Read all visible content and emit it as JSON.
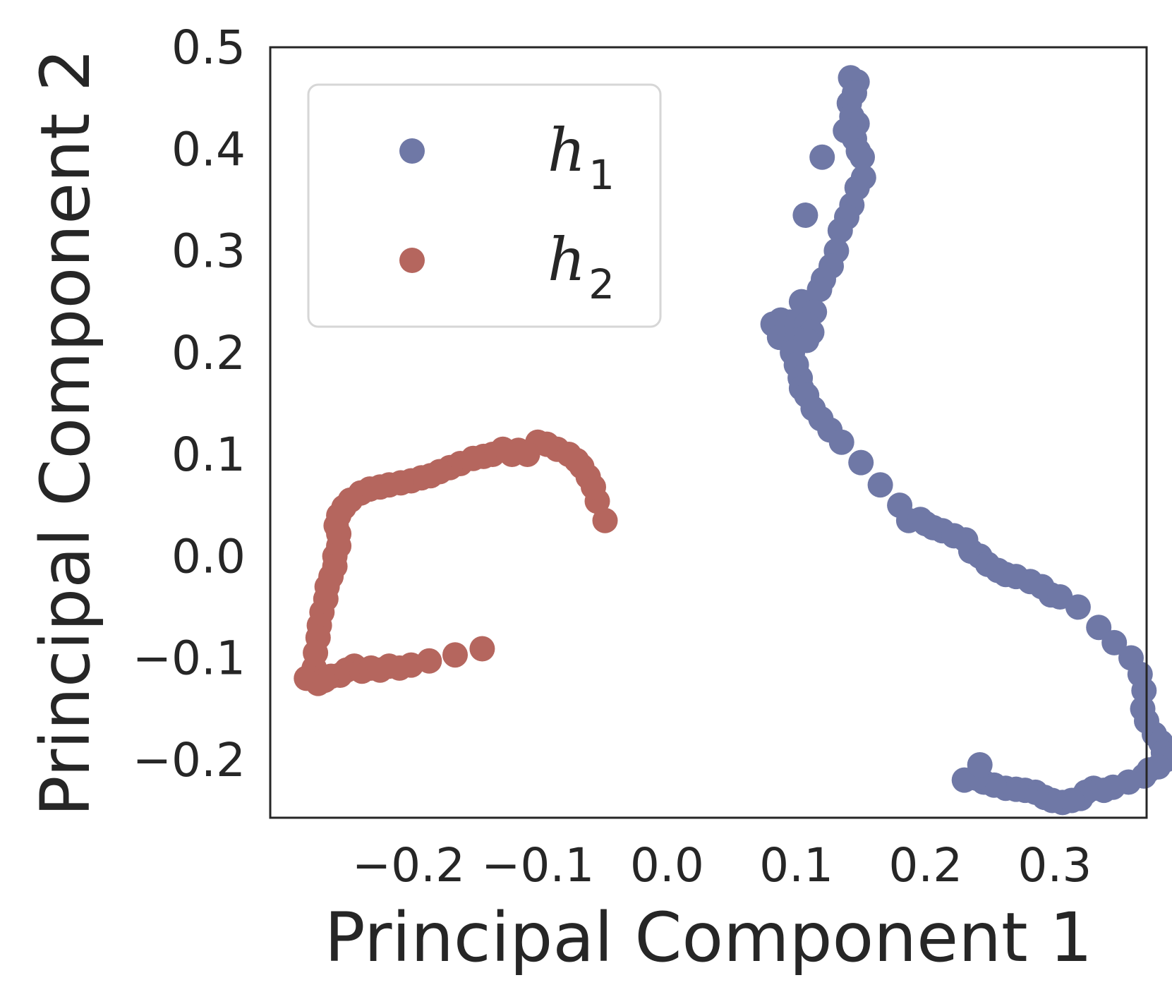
{
  "chart_data": {
    "type": "scatter",
    "xlabel": "Principal Component 1",
    "ylabel": "Principal Component 2",
    "xlim": [
      -0.307,
      0.371
    ],
    "ylim": [
      -0.257,
      0.5
    ],
    "x_ticks": [
      -0.2,
      -0.1,
      0.0,
      0.1,
      0.2,
      0.3
    ],
    "x_tick_labels": [
      "−0.2",
      "−0.1",
      "0.0",
      "0.1",
      "0.2",
      "0.3"
    ],
    "y_ticks": [
      -0.2,
      -0.1,
      0.0,
      0.1,
      0.2,
      0.3,
      0.4,
      0.5
    ],
    "y_tick_labels": [
      "−0.2",
      "−0.1",
      "0.0",
      "0.1",
      "0.2",
      "0.3",
      "0.4",
      "0.5"
    ],
    "grid": false,
    "legend_position": "top-left",
    "series": [
      {
        "name": "h",
        "subscript": "1",
        "color": "#6f78a6",
        "points": [
          [
            0.142,
            0.47
          ],
          [
            0.147,
            0.466
          ],
          [
            0.145,
            0.455
          ],
          [
            0.141,
            0.445
          ],
          [
            0.143,
            0.432
          ],
          [
            0.147,
            0.425
          ],
          [
            0.138,
            0.418
          ],
          [
            0.145,
            0.41
          ],
          [
            0.148,
            0.398
          ],
          [
            0.151,
            0.392
          ],
          [
            0.12,
            0.392
          ],
          [
            0.152,
            0.372
          ],
          [
            0.147,
            0.362
          ],
          [
            0.143,
            0.345
          ],
          [
            0.107,
            0.335
          ],
          [
            0.139,
            0.333
          ],
          [
            0.134,
            0.32
          ],
          [
            0.131,
            0.3
          ],
          [
            0.127,
            0.285
          ],
          [
            0.121,
            0.272
          ],
          [
            0.104,
            0.25
          ],
          [
            0.118,
            0.262
          ],
          [
            0.114,
            0.24
          ],
          [
            0.082,
            0.228
          ],
          [
            0.088,
            0.232
          ],
          [
            0.095,
            0.23
          ],
          [
            0.101,
            0.23
          ],
          [
            0.108,
            0.228
          ],
          [
            0.112,
            0.22
          ],
          [
            0.087,
            0.215
          ],
          [
            0.095,
            0.215
          ],
          [
            0.1,
            0.212
          ],
          [
            0.108,
            0.212
          ],
          [
            0.097,
            0.2
          ],
          [
            0.1,
            0.188
          ],
          [
            0.103,
            0.175
          ],
          [
            0.104,
            0.165
          ],
          [
            0.108,
            0.158
          ],
          [
            0.113,
            0.145
          ],
          [
            0.119,
            0.135
          ],
          [
            0.126,
            0.124
          ],
          [
            0.135,
            0.112
          ],
          [
            0.15,
            0.092
          ],
          [
            0.165,
            0.07
          ],
          [
            0.18,
            0.05
          ],
          [
            0.187,
            0.035
          ],
          [
            0.196,
            0.036
          ],
          [
            0.2,
            0.032
          ],
          [
            0.206,
            0.028
          ],
          [
            0.213,
            0.025
          ],
          [
            0.222,
            0.02
          ],
          [
            0.231,
            0.016
          ],
          [
            0.235,
            0.005
          ],
          [
            0.242,
            0.0
          ],
          [
            0.248,
            -0.008
          ],
          [
            0.256,
            -0.014
          ],
          [
            0.262,
            -0.018
          ],
          [
            0.27,
            -0.02
          ],
          [
            0.281,
            -0.025
          ],
          [
            0.29,
            -0.03
          ],
          [
            0.297,
            -0.038
          ],
          [
            0.304,
            -0.04
          ],
          [
            0.318,
            -0.05
          ],
          [
            0.334,
            -0.07
          ],
          [
            0.346,
            -0.085
          ],
          [
            0.359,
            -0.1
          ],
          [
            0.366,
            -0.116
          ],
          [
            0.369,
            -0.132
          ],
          [
            0.368,
            -0.15
          ],
          [
            0.371,
            -0.162
          ],
          [
            0.377,
            -0.175
          ],
          [
            0.382,
            -0.183
          ],
          [
            0.384,
            -0.193
          ],
          [
            0.386,
            -0.2
          ],
          [
            0.38,
            -0.207
          ],
          [
            0.373,
            -0.21
          ],
          [
            0.369,
            -0.216
          ],
          [
            0.357,
            -0.222
          ],
          [
            0.345,
            -0.227
          ],
          [
            0.338,
            -0.23
          ],
          [
            0.33,
            -0.228
          ],
          [
            0.324,
            -0.232
          ],
          [
            0.32,
            -0.238
          ],
          [
            0.313,
            -0.24
          ],
          [
            0.306,
            -0.242
          ],
          [
            0.298,
            -0.24
          ],
          [
            0.292,
            -0.237
          ],
          [
            0.285,
            -0.232
          ],
          [
            0.277,
            -0.23
          ],
          [
            0.27,
            -0.229
          ],
          [
            0.262,
            -0.228
          ],
          [
            0.253,
            -0.225
          ],
          [
            0.245,
            -0.222
          ],
          [
            0.239,
            -0.218
          ],
          [
            0.23,
            -0.22
          ],
          [
            0.242,
            -0.205
          ]
        ]
      },
      {
        "name": "h",
        "subscript": "2",
        "color": "#b5665e",
        "points": [
          [
            -0.048,
            0.035
          ],
          [
            -0.054,
            0.054
          ],
          [
            -0.057,
            0.068
          ],
          [
            -0.061,
            0.078
          ],
          [
            -0.066,
            0.088
          ],
          [
            -0.07,
            0.094
          ],
          [
            -0.076,
            0.1
          ],
          [
            -0.085,
            0.105
          ],
          [
            -0.093,
            0.11
          ],
          [
            -0.1,
            0.112
          ],
          [
            -0.108,
            0.1
          ],
          [
            -0.115,
            0.104
          ],
          [
            -0.12,
            0.1
          ],
          [
            -0.127,
            0.105
          ],
          [
            -0.135,
            0.1
          ],
          [
            -0.142,
            0.098
          ],
          [
            -0.15,
            0.096
          ],
          [
            -0.16,
            0.091
          ],
          [
            -0.168,
            0.087
          ],
          [
            -0.176,
            0.083
          ],
          [
            -0.183,
            0.079
          ],
          [
            -0.19,
            0.077
          ],
          [
            -0.198,
            0.074
          ],
          [
            -0.206,
            0.072
          ],
          [
            -0.215,
            0.07
          ],
          [
            -0.222,
            0.068
          ],
          [
            -0.23,
            0.066
          ],
          [
            -0.237,
            0.062
          ],
          [
            -0.245,
            0.055
          ],
          [
            -0.25,
            0.048
          ],
          [
            -0.254,
            0.04
          ],
          [
            -0.256,
            0.03
          ],
          [
            -0.254,
            0.022
          ],
          [
            -0.254,
            0.01
          ],
          [
            -0.257,
            0.0
          ],
          [
            -0.257,
            -0.01
          ],
          [
            -0.26,
            -0.02
          ],
          [
            -0.263,
            -0.03
          ],
          [
            -0.264,
            -0.042
          ],
          [
            -0.267,
            -0.055
          ],
          [
            -0.269,
            -0.068
          ],
          [
            -0.27,
            -0.08
          ],
          [
            -0.272,
            -0.095
          ],
          [
            -0.273,
            -0.11
          ],
          [
            -0.275,
            -0.12
          ],
          [
            -0.279,
            -0.12
          ],
          [
            -0.27,
            -0.125
          ],
          [
            -0.265,
            -0.122
          ],
          [
            -0.26,
            -0.118
          ],
          [
            -0.253,
            -0.117
          ],
          [
            -0.248,
            -0.112
          ],
          [
            -0.242,
            -0.108
          ],
          [
            -0.236,
            -0.113
          ],
          [
            -0.229,
            -0.11
          ],
          [
            -0.222,
            -0.112
          ],
          [
            -0.215,
            -0.108
          ],
          [
            -0.207,
            -0.11
          ],
          [
            -0.198,
            -0.107
          ],
          [
            -0.184,
            -0.103
          ],
          [
            -0.164,
            -0.097
          ],
          [
            -0.143,
            -0.091
          ]
        ]
      }
    ]
  }
}
